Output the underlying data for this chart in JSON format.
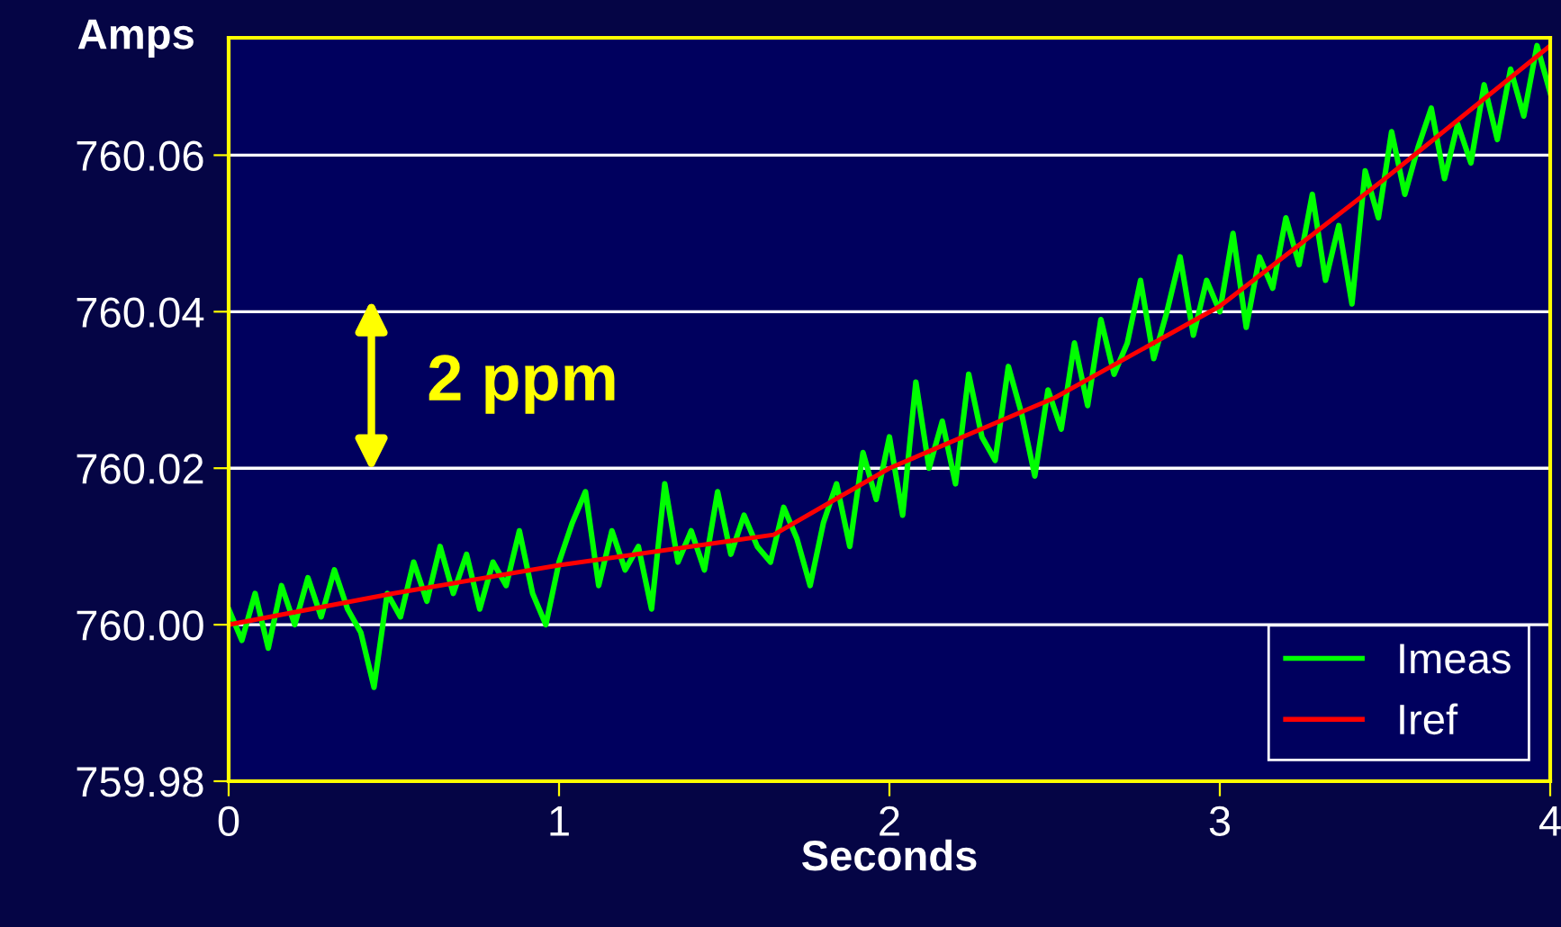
{
  "chart_data": {
    "type": "line",
    "ylabel": "Amps",
    "xlabel": "Seconds",
    "xlim": [
      0,
      4
    ],
    "xticks": [
      0,
      1,
      2,
      3,
      4
    ],
    "ylim": [
      759.98,
      760.075
    ],
    "yticks": [
      {
        "value": 759.98,
        "label": "759.98"
      },
      {
        "value": 760.0,
        "label": "760.00"
      },
      {
        "value": 760.02,
        "label": "760.02"
      },
      {
        "value": 760.04,
        "label": "760.04"
      },
      {
        "value": 760.06,
        "label": "760.06"
      }
    ],
    "grid": "y",
    "legend": "bottom right",
    "marker": "none",
    "line_style": "solid",
    "annotations": [
      "2 ppm"
    ],
    "series": [
      {
        "name": "Imeas",
        "color": "#00ff00",
        "x": [
          0,
          0.04,
          0.08,
          0.12,
          0.16,
          0.2,
          0.24,
          0.28,
          0.32,
          0.36,
          0.4,
          0.44,
          0.48,
          0.52,
          0.56,
          0.6,
          0.64,
          0.68,
          0.72,
          0.76,
          0.8,
          0.84,
          0.88,
          0.92,
          0.96,
          1.0,
          1.04,
          1.08,
          1.12,
          1.16,
          1.2,
          1.24,
          1.28,
          1.32,
          1.36,
          1.4,
          1.44,
          1.48,
          1.52,
          1.56,
          1.6,
          1.64,
          1.68,
          1.72,
          1.76,
          1.8,
          1.84,
          1.88,
          1.92,
          1.96,
          2.0,
          2.04,
          2.08,
          2.12,
          2.16,
          2.2,
          2.24,
          2.28,
          2.32,
          2.36,
          2.4,
          2.44,
          2.48,
          2.52,
          2.56,
          2.6,
          2.64,
          2.68,
          2.72,
          2.76,
          2.8,
          2.84,
          2.88,
          2.92,
          2.96,
          3.0,
          3.04,
          3.08,
          3.12,
          3.16,
          3.2,
          3.24,
          3.28,
          3.32,
          3.36,
          3.4,
          3.44,
          3.48,
          3.52,
          3.56,
          3.6,
          3.64,
          3.68,
          3.72,
          3.76,
          3.8,
          3.84,
          3.88,
          3.92,
          3.96,
          4.0
        ],
        "values": [
          760.002,
          759.998,
          760.004,
          759.997,
          760.005,
          760.0,
          760.006,
          760.001,
          760.007,
          760.002,
          759.999,
          759.992,
          760.004,
          760.001,
          760.008,
          760.003,
          760.01,
          760.004,
          760.009,
          760.002,
          760.008,
          760.005,
          760.012,
          760.004,
          760.0,
          760.008,
          760.013,
          760.017,
          760.005,
          760.012,
          760.007,
          760.01,
          760.002,
          760.018,
          760.008,
          760.012,
          760.007,
          760.017,
          760.009,
          760.014,
          760.01,
          760.008,
          760.015,
          760.011,
          760.005,
          760.013,
          760.018,
          760.01,
          760.022,
          760.016,
          760.024,
          760.014,
          760.031,
          760.02,
          760.026,
          760.018,
          760.032,
          760.024,
          760.021,
          760.033,
          760.027,
          760.019,
          760.03,
          760.025,
          760.036,
          760.028,
          760.039,
          760.032,
          760.036,
          760.044,
          760.034,
          760.04,
          760.047,
          760.037,
          760.044,
          760.04,
          760.05,
          760.038,
          760.047,
          760.043,
          760.052,
          760.046,
          760.055,
          760.044,
          760.051,
          760.041,
          760.058,
          760.052,
          760.063,
          760.055,
          760.061,
          760.066,
          760.057,
          760.064,
          760.059,
          760.069,
          760.062,
          760.071,
          760.065,
          760.074,
          760.068
        ]
      },
      {
        "name": "Iref",
        "color": "#ff0000",
        "x": [
          0,
          0.5,
          1.0,
          1.5,
          1.65,
          2.0,
          2.5,
          3.0,
          3.5,
          4.0
        ],
        "values": [
          760.0,
          760.004,
          760.0076,
          760.0106,
          760.0115,
          760.02,
          760.029,
          760.0407,
          760.057,
          760.074
        ]
      }
    ]
  }
}
